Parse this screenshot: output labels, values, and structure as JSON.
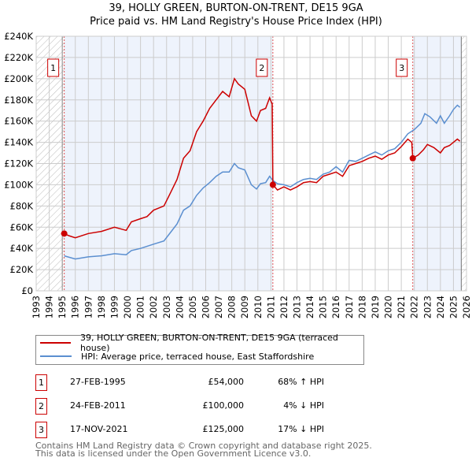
{
  "chart_data": {
    "type": "line",
    "title": "39, HOLLY GREEN, BURTON-ON-TRENT, DE15 9GA",
    "subtitle": "Price paid vs. HM Land Registry's House Price Index (HPI)",
    "xlim": [
      1993,
      2026
    ],
    "ylim": [
      0,
      240000
    ],
    "yticks": [
      0,
      20000,
      40000,
      60000,
      80000,
      100000,
      120000,
      140000,
      160000,
      180000,
      200000,
      220000,
      240000
    ],
    "ytick_labels": [
      "£0",
      "£20K",
      "£40K",
      "£60K",
      "£80K",
      "£100K",
      "£120K",
      "£140K",
      "£160K",
      "£180K",
      "£200K",
      "£220K",
      "£240K"
    ],
    "xticks": [
      1993,
      1994,
      1995,
      1996,
      1997,
      1998,
      1999,
      2000,
      2001,
      2002,
      2003,
      2004,
      2005,
      2006,
      2007,
      2008,
      2009,
      2010,
      2011,
      2012,
      2013,
      2014,
      2015,
      2016,
      2017,
      2018,
      2019,
      2020,
      2021,
      2022,
      2023,
      2024,
      2025,
      2026
    ],
    "grid": true,
    "legend_placement": "below",
    "series": [
      {
        "name": "39, HOLLY GREEN, BURTON-ON-TRENT, DE15 9GA (terraced house)",
        "color": "#cc0000",
        "x": [
          1995.15,
          1995.5,
          1996,
          1997,
          1998,
          1999,
          1999.9,
          2000.3,
          2001,
          2001.5,
          2002,
          2002.8,
          2003.2,
          2003.8,
          2004.3,
          2004.8,
          2005.3,
          2005.8,
          2006.3,
          2006.8,
          2007.3,
          2007.8,
          2008.2,
          2008.5,
          2009,
          2009.5,
          2009.9,
          2010.2,
          2010.6,
          2010.9,
          2011.1,
          2011.15,
          2011.5,
          2012,
          2012.5,
          2013,
          2013.5,
          2014,
          2014.5,
          2015,
          2015.5,
          2016,
          2016.5,
          2017,
          2017.5,
          2018,
          2018.5,
          2019,
          2019.5,
          2020,
          2020.5,
          2021,
          2021.5,
          2021.8,
          2021.88,
          2022.3,
          2022.7,
          2023,
          2023.5,
          2024,
          2024.3,
          2024.7,
          2025,
          2025.3,
          2025.5
        ],
        "y": [
          54,
          52,
          50,
          54,
          56,
          60,
          57,
          65,
          68,
          70,
          76,
          80,
          90,
          105,
          125,
          132,
          150,
          160,
          172,
          180,
          188,
          183,
          200,
          195,
          190,
          165,
          160,
          170,
          172,
          182,
          176,
          100,
          95,
          98,
          95,
          98,
          102,
          103,
          102,
          108,
          110,
          112,
          108,
          118,
          120,
          122,
          125,
          127,
          124,
          128,
          130,
          136,
          143,
          140,
          125,
          128,
          133,
          138,
          135,
          130,
          135,
          137,
          140,
          143,
          141
        ]
      },
      {
        "name": "HPI: Average price, terraced house, East Staffordshire",
        "color": "#5b8fd0",
        "x": [
          1995.15,
          1996,
          1997,
          1998,
          1999,
          1999.9,
          2000.3,
          2001,
          2002,
          2002.8,
          2003.3,
          2003.8,
          2004.3,
          2004.8,
          2005.3,
          2005.8,
          2006.3,
          2006.8,
          2007.3,
          2007.8,
          2008.2,
          2008.5,
          2009,
          2009.5,
          2009.9,
          2010.2,
          2010.6,
          2010.9,
          2011.15,
          2011.5,
          2012,
          2012.5,
          2013,
          2013.5,
          2014,
          2014.5,
          2015,
          2015.5,
          2016,
          2016.5,
          2017,
          2017.5,
          2018,
          2018.5,
          2019,
          2019.5,
          2020,
          2020.5,
          2021,
          2021.5,
          2022,
          2022.5,
          2022.8,
          2023.2,
          2023.7,
          2024,
          2024.3,
          2024.7,
          2025,
          2025.3,
          2025.5
        ],
        "y": [
          33,
          30,
          32,
          33,
          35,
          34,
          38,
          40,
          44,
          47,
          55,
          63,
          76,
          80,
          90,
          97,
          102,
          108,
          112,
          112,
          120,
          116,
          114,
          100,
          96,
          101,
          102,
          108,
          104,
          101,
          100,
          98,
          102,
          105,
          106,
          105,
          110,
          112,
          117,
          112,
          123,
          122,
          125,
          128,
          131,
          128,
          132,
          134,
          140,
          148,
          152,
          158,
          167,
          164,
          158,
          165,
          158,
          165,
          171,
          175,
          173
        ]
      }
    ],
    "y_units": "thousands GBP",
    "sales": [
      {
        "label": "1",
        "x": 1995.15,
        "y": 54
      },
      {
        "label": "2",
        "x": 2011.15,
        "y": 100
      },
      {
        "label": "3",
        "x": 2021.88,
        "y": 125
      }
    ]
  },
  "legend": {
    "property": "39, HOLLY GREEN, BURTON-ON-TRENT, DE15 9GA (terraced house)",
    "hpi": "HPI: Average price, terraced house, East Staffordshire"
  },
  "table": [
    {
      "n": "1",
      "date": "27-FEB-1995",
      "price": "£54,000",
      "hpi": "68% ↑ HPI"
    },
    {
      "n": "2",
      "date": "24-FEB-2011",
      "price": "£100,000",
      "hpi": "4% ↓ HPI"
    },
    {
      "n": "3",
      "date": "17-NOV-2021",
      "price": "£125,000",
      "hpi": "17% ↓ HPI"
    }
  ],
  "footer": {
    "line1": "Contains HM Land Registry data © Crown copyright and database right 2025.",
    "line2": "This data is licensed under the Open Government Licence v3.0."
  }
}
